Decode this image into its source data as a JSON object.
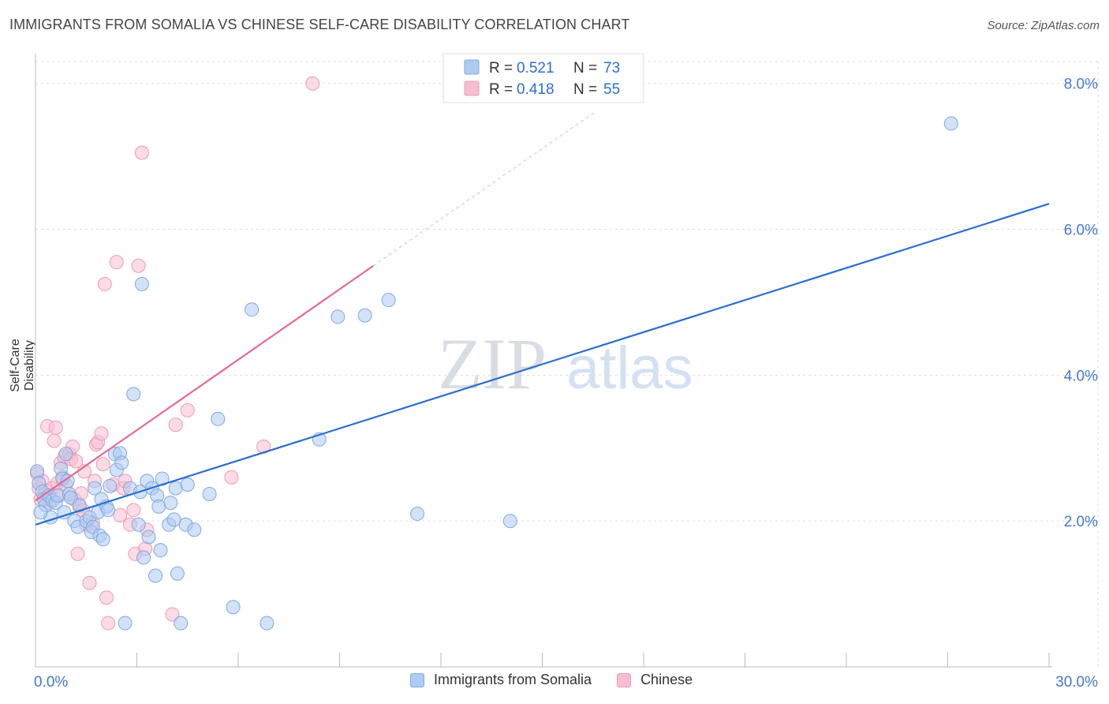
{
  "header": {
    "title": "IMMIGRANTS FROM SOMALIA VS CHINESE SELF-CARE DISABILITY CORRELATION CHART",
    "source": "Source: ZipAtlas.com"
  },
  "watermark": {
    "zip": "ZIP",
    "atlas": "atlas"
  },
  "legend_box": {
    "r_label": "R =",
    "n_label": "N =",
    "rows": [
      {
        "r": "0.521",
        "n": "73"
      },
      {
        "r": "0.418",
        "n": "55"
      }
    ]
  },
  "colors": {
    "blue_fill": "#aecbf2",
    "blue_stroke": "#7fa8e0",
    "blue_line": "#2a6fcf",
    "pink_fill": "#f7bdd0",
    "pink_stroke": "#ee9ab5",
    "pink_line": "#e46a93",
    "tick_label": "#4477cc",
    "grid": "#dddddd"
  },
  "chart_data": {
    "type": "scatter",
    "title": "IMMIGRANTS FROM SOMALIA VS CHINESE SELF-CARE DISABILITY CORRELATION CHART",
    "xlabel": "",
    "ylabel": "Self-Care Disability",
    "xlim": [
      0,
      30
    ],
    "ylim": [
      0,
      8.3
    ],
    "x_tick_labels": [
      "0.0%",
      "30.0%"
    ],
    "y_ticks": [
      2,
      4,
      6,
      8
    ],
    "y_tick_labels": [
      "2.0%",
      "4.0%",
      "6.0%",
      "8.0%"
    ],
    "grid": true,
    "legend_position": "top-center",
    "series": [
      {
        "name": "Immigrants from Somalia",
        "R": 0.521,
        "N": 73,
        "trend": {
          "x0": 0,
          "y0": 1.95,
          "x1": 30,
          "y1": 6.35
        },
        "points": [
          [
            0.05,
            2.68
          ],
          [
            0.1,
            2.52
          ],
          [
            0.2,
            2.4
          ],
          [
            0.25,
            2.3
          ],
          [
            0.3,
            2.22
          ],
          [
            0.4,
            2.35
          ],
          [
            0.45,
            2.05
          ],
          [
            0.5,
            2.28
          ],
          [
            0.6,
            2.25
          ],
          [
            0.65,
            2.35
          ],
          [
            0.75,
            2.72
          ],
          [
            0.8,
            2.58
          ],
          [
            0.85,
            2.12
          ],
          [
            0.9,
            2.92
          ],
          [
            0.95,
            2.55
          ],
          [
            1.0,
            2.37
          ],
          [
            1.05,
            2.32
          ],
          [
            1.15,
            2.0
          ],
          [
            1.25,
            1.92
          ],
          [
            1.5,
            2.0
          ],
          [
            1.6,
            2.05
          ],
          [
            1.65,
            1.85
          ],
          [
            1.7,
            1.92
          ],
          [
            1.75,
            2.45
          ],
          [
            1.85,
            2.12
          ],
          [
            1.9,
            1.8
          ],
          [
            1.95,
            2.3
          ],
          [
            2.0,
            1.75
          ],
          [
            2.1,
            2.2
          ],
          [
            2.15,
            2.15
          ],
          [
            2.2,
            2.48
          ],
          [
            2.35,
            2.92
          ],
          [
            2.4,
            2.7
          ],
          [
            2.5,
            2.93
          ],
          [
            2.55,
            2.8
          ],
          [
            2.65,
            0.6
          ],
          [
            2.8,
            2.45
          ],
          [
            2.9,
            3.74
          ],
          [
            3.05,
            1.95
          ],
          [
            3.1,
            2.4
          ],
          [
            3.15,
            5.25
          ],
          [
            3.2,
            1.5
          ],
          [
            3.3,
            2.55
          ],
          [
            3.35,
            1.78
          ],
          [
            3.45,
            2.45
          ],
          [
            3.55,
            1.25
          ],
          [
            3.6,
            2.35
          ],
          [
            3.65,
            2.2
          ],
          [
            3.7,
            1.6
          ],
          [
            3.75,
            2.58
          ],
          [
            3.95,
            1.95
          ],
          [
            4.0,
            2.25
          ],
          [
            4.1,
            2.02
          ],
          [
            4.15,
            2.45
          ],
          [
            4.2,
            1.28
          ],
          [
            4.3,
            0.6
          ],
          [
            4.45,
            1.95
          ],
          [
            4.5,
            2.5
          ],
          [
            4.7,
            1.88
          ],
          [
            5.15,
            2.37
          ],
          [
            5.4,
            3.4
          ],
          [
            5.85,
            0.82
          ],
          [
            6.4,
            4.9
          ],
          [
            6.85,
            0.6
          ],
          [
            8.4,
            3.12
          ],
          [
            8.95,
            4.8
          ],
          [
            9.75,
            4.82
          ],
          [
            10.45,
            5.03
          ],
          [
            11.3,
            2.1
          ],
          [
            14.05,
            2.0
          ],
          [
            27.1,
            7.45
          ],
          [
            0.15,
            2.12
          ],
          [
            1.3,
            2.22
          ]
        ]
      },
      {
        "name": "Chinese",
        "R": 0.418,
        "N": 55,
        "trend_solid": {
          "x0": 0,
          "y0": 2.28,
          "x1": 10.0,
          "y1": 5.5
        },
        "trend_dashed": {
          "x0": 10.0,
          "y0": 5.5,
          "x1": 16.6,
          "y1": 7.62
        },
        "points": [
          [
            0.05,
            2.65
          ],
          [
            0.1,
            2.45
          ],
          [
            0.15,
            2.3
          ],
          [
            0.2,
            2.55
          ],
          [
            0.3,
            2.42
          ],
          [
            0.35,
            3.3
          ],
          [
            0.4,
            2.25
          ],
          [
            0.5,
            2.45
          ],
          [
            0.55,
            3.1
          ],
          [
            0.6,
            3.28
          ],
          [
            0.65,
            2.52
          ],
          [
            0.7,
            2.35
          ],
          [
            0.75,
            2.8
          ],
          [
            0.8,
            2.6
          ],
          [
            0.85,
            2.88
          ],
          [
            0.9,
            2.5
          ],
          [
            1.0,
            2.92
          ],
          [
            1.05,
            2.85
          ],
          [
            1.1,
            3.02
          ],
          [
            1.15,
            2.3
          ],
          [
            1.2,
            2.82
          ],
          [
            1.25,
            1.55
          ],
          [
            1.3,
            2.2
          ],
          [
            1.35,
            2.38
          ],
          [
            1.4,
            2.15
          ],
          [
            1.45,
            2.68
          ],
          [
            1.5,
            1.95
          ],
          [
            1.6,
            1.15
          ],
          [
            1.7,
            1.98
          ],
          [
            1.75,
            2.55
          ],
          [
            1.8,
            3.05
          ],
          [
            1.85,
            3.08
          ],
          [
            1.95,
            3.2
          ],
          [
            2.0,
            2.78
          ],
          [
            2.05,
            5.25
          ],
          [
            2.1,
            0.95
          ],
          [
            2.15,
            0.6
          ],
          [
            2.3,
            2.5
          ],
          [
            2.4,
            5.55
          ],
          [
            2.5,
            2.08
          ],
          [
            2.6,
            2.45
          ],
          [
            2.65,
            2.55
          ],
          [
            2.8,
            1.95
          ],
          [
            2.9,
            2.15
          ],
          [
            2.95,
            1.55
          ],
          [
            3.05,
            5.5
          ],
          [
            3.15,
            7.05
          ],
          [
            3.25,
            1.62
          ],
          [
            3.3,
            1.88
          ],
          [
            4.05,
            0.72
          ],
          [
            4.15,
            3.32
          ],
          [
            4.5,
            3.52
          ],
          [
            5.8,
            2.6
          ],
          [
            6.75,
            3.02
          ],
          [
            8.2,
            8.0
          ]
        ]
      }
    ]
  },
  "bottom_legend": [
    {
      "label": "Immigrants from Somalia"
    },
    {
      "label": "Chinese"
    }
  ]
}
